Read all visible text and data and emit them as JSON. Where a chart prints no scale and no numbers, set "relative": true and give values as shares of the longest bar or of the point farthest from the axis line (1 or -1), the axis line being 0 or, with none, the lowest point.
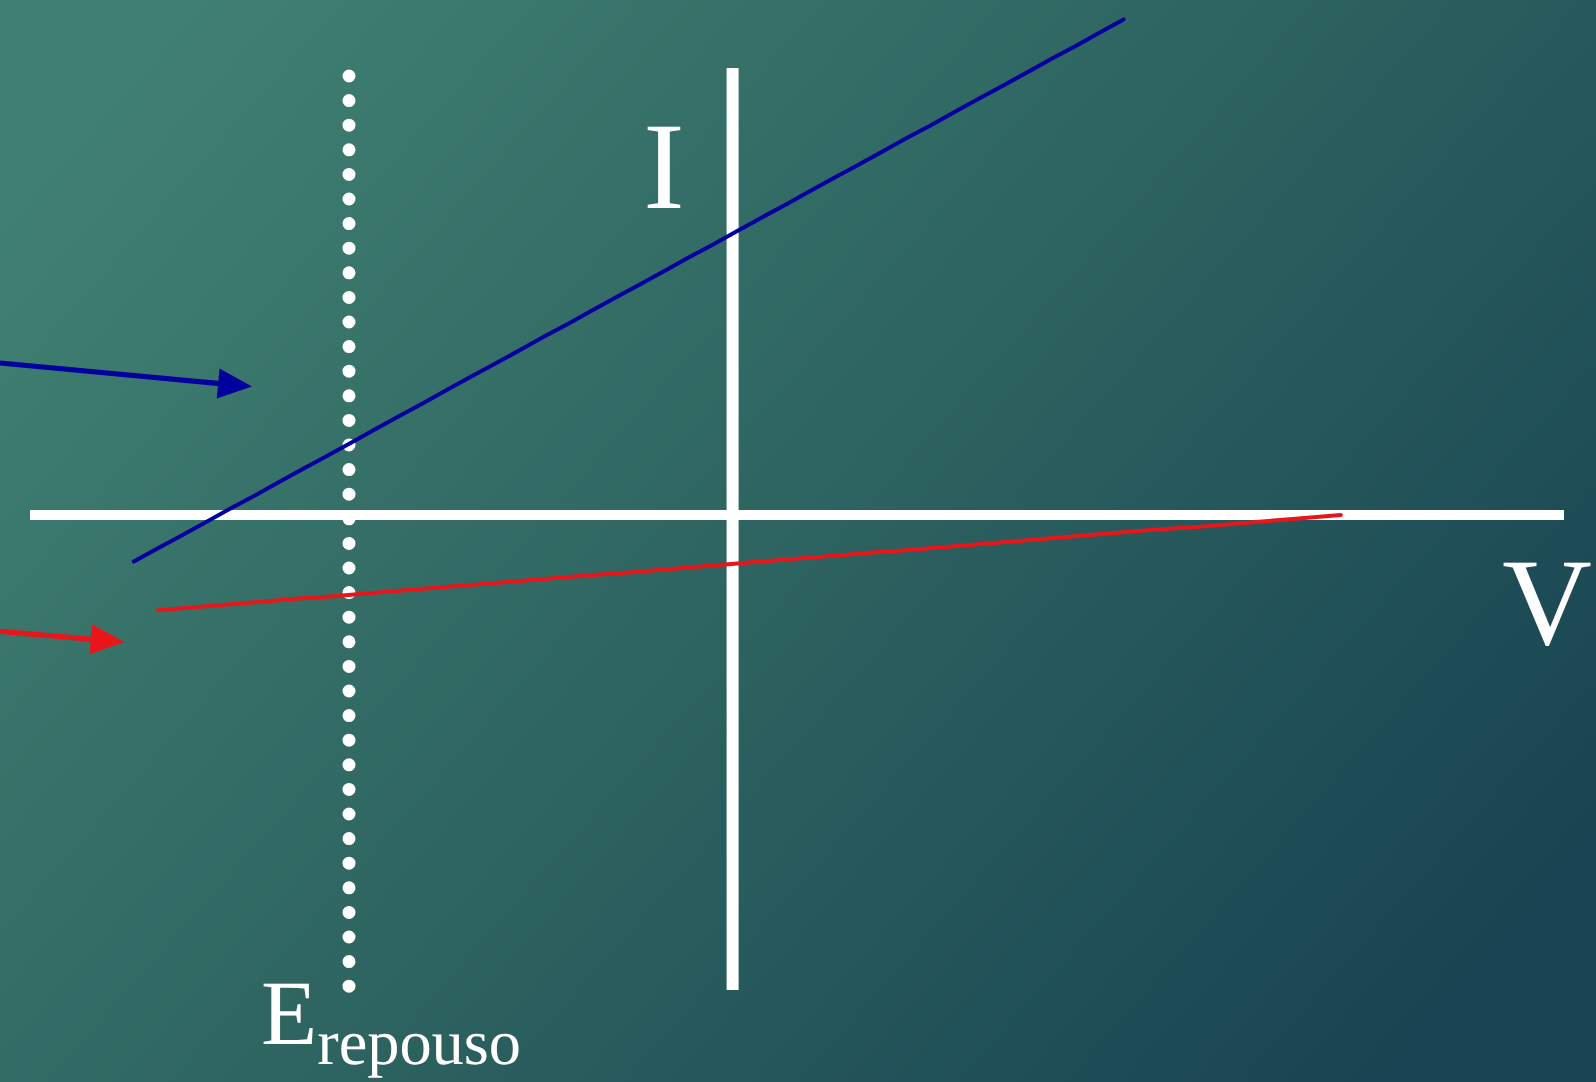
{
  "chart_data": {
    "type": "line",
    "xlabel": "V",
    "ylabel": "I",
    "relative": true,
    "categories": [
      null,
      null,
      null,
      null,
      null,
      null,
      null,
      null,
      null,
      null,
      null,
      null,
      null,
      null,
      null,
      null,
      null,
      null,
      null,
      null,
      null,
      null,
      null,
      null,
      null,
      null,
      null,
      null,
      null,
      null,
      null,
      null,
      null,
      null,
      null,
      null,
      null,
      null,
      null,
      null,
      null,
      null,
      null,
      null,
      null,
      null,
      null,
      null,
      null,
      null,
      null
    ],
    "series": [
      {
        "color": "#00009e",
        "values": [
          -0.094,
          -0.067,
          -0.041,
          -0.014,
          0.013,
          0.039,
          0.066,
          0.093,
          0.119,
          0.146,
          0.173,
          0.2,
          0.226,
          0.253,
          0.28,
          0.306,
          0.333,
          0.36,
          0.386,
          0.413,
          0.44,
          0.466,
          0.493,
          0.52,
          0.546,
          0.573,
          0.6,
          0.626,
          0.653,
          0.68,
          0.706,
          0.733,
          0.76,
          0.786,
          0.813,
          0.84,
          0.866,
          0.893,
          0.92,
          0.946,
          0.973,
          1,
          null,
          null,
          null,
          null,
          null,
          null,
          null,
          null,
          null
        ]
      },
      {
        "color": "#e8161b",
        "values": [
          null,
          -0.192,
          -0.188,
          -0.184,
          -0.18,
          -0.176,
          -0.172,
          -0.168,
          -0.165,
          -0.161,
          -0.157,
          -0.153,
          -0.149,
          -0.145,
          -0.141,
          -0.137,
          -0.133,
          -0.129,
          -0.125,
          -0.121,
          -0.118,
          -0.114,
          -0.11,
          -0.106,
          -0.102,
          -0.098,
          -0.094,
          -0.09,
          -0.086,
          -0.082,
          -0.078,
          -0.074,
          -0.071,
          -0.067,
          -0.063,
          -0.059,
          -0.055,
          -0.051,
          -0.047,
          -0.043,
          -0.039,
          -0.035,
          -0.031,
          -0.027,
          -0.024,
          -0.02,
          -0.016,
          -0.012,
          -0.008,
          -0.004,
          0
        ]
      }
    ],
    "annotations": [
      "E$_{repouso}$"
    ]
  }
}
